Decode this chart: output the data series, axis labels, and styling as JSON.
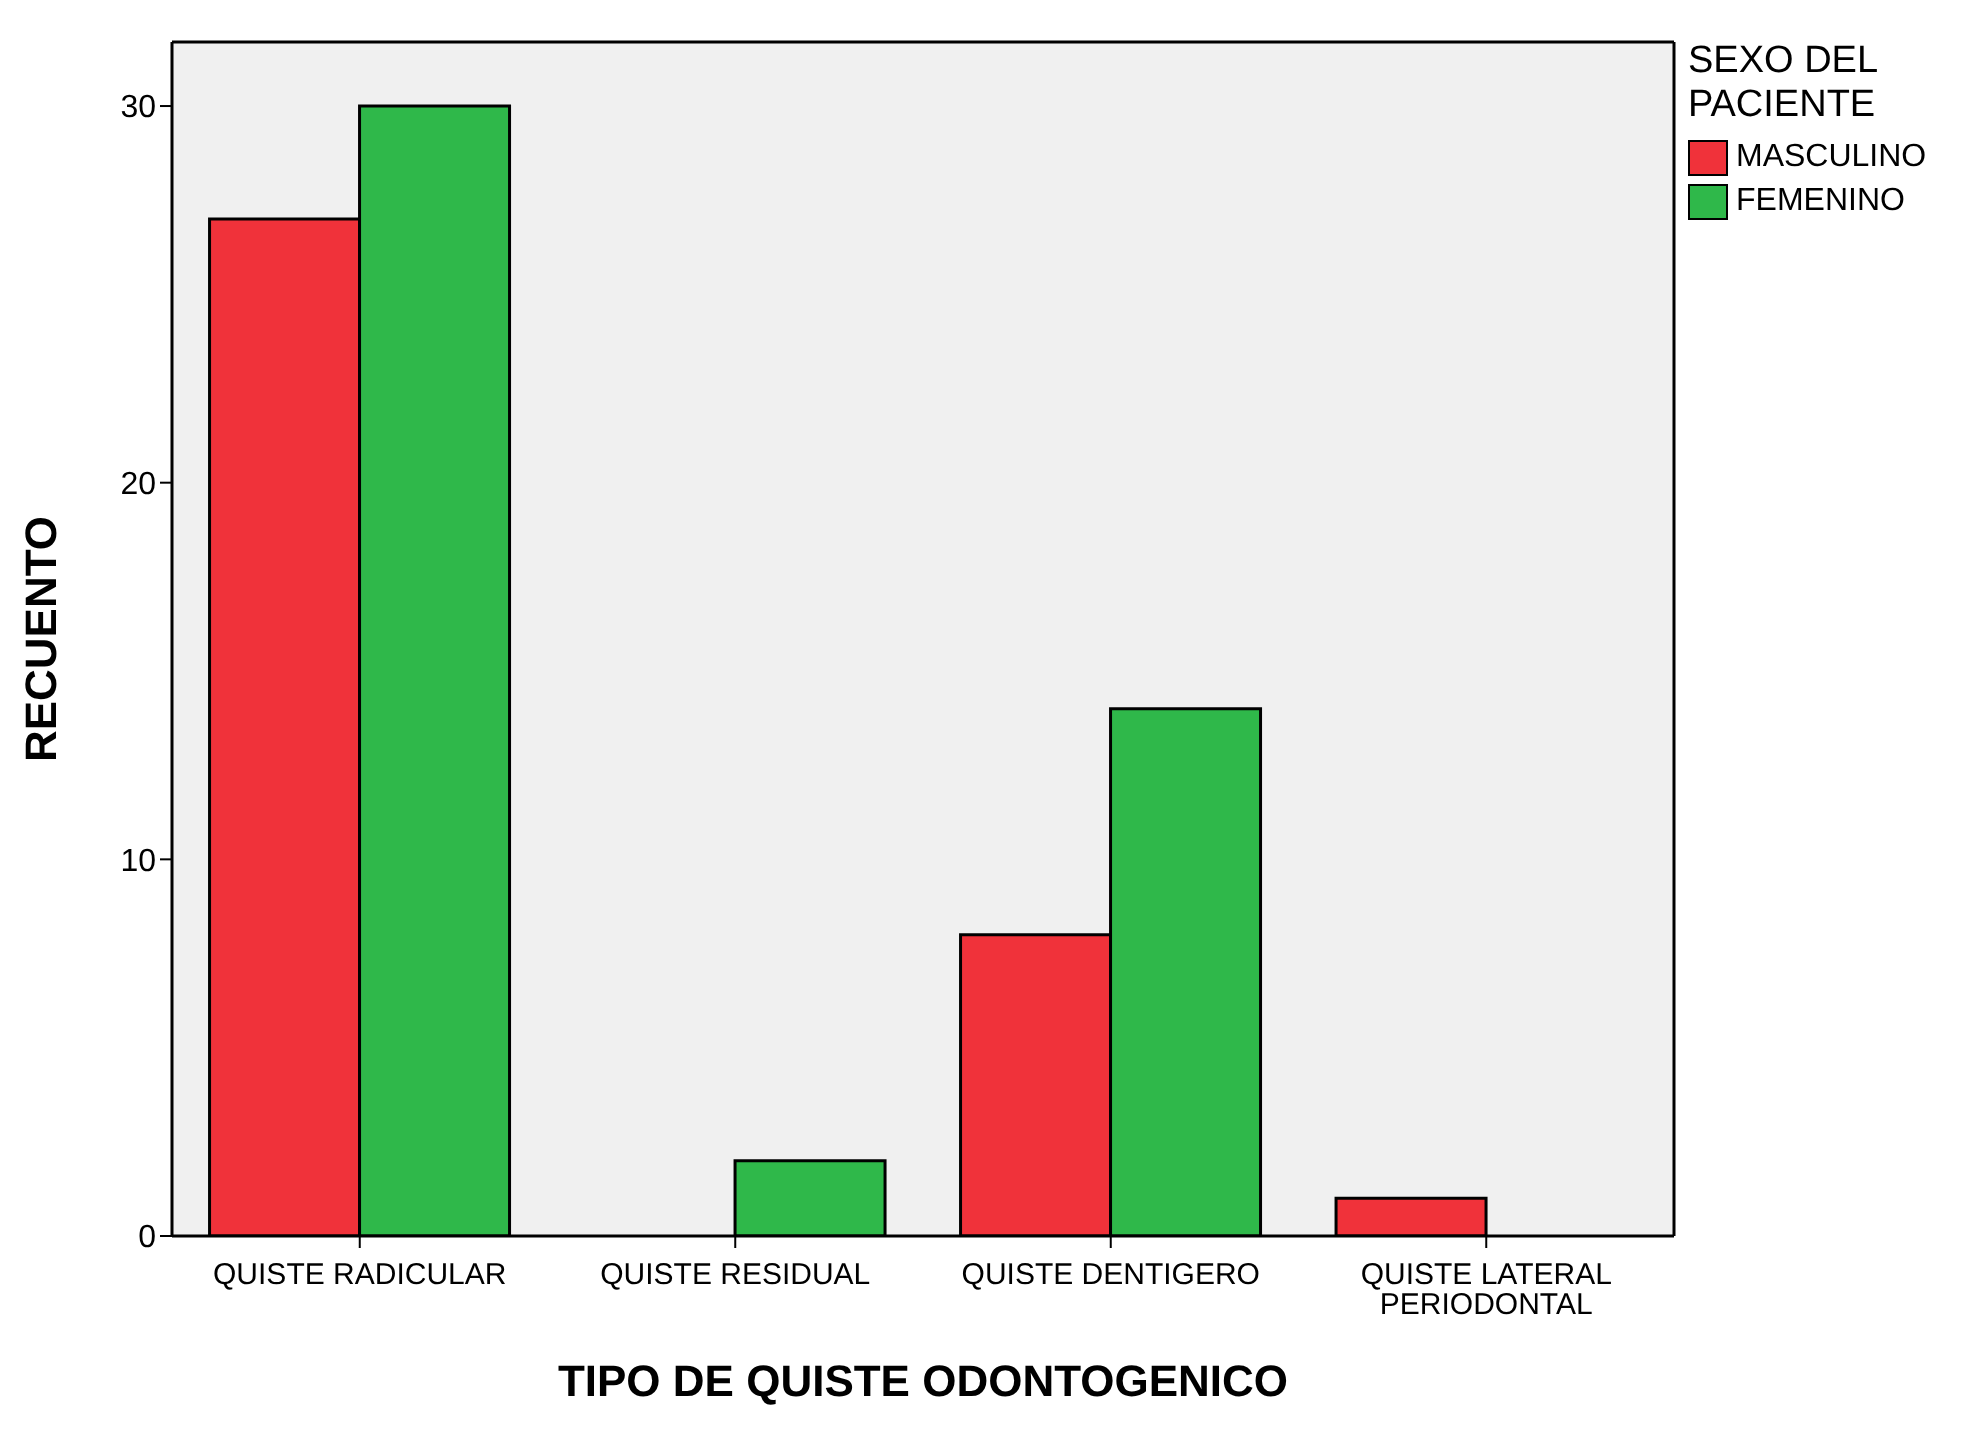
{
  "chart_data": {
    "type": "bar",
    "xlabel": "TIPO DE QUISTE ODONTOGENICO",
    "ylabel": "RECUENTO",
    "legend_title": "SEXO DEL PACIENTE",
    "categories": [
      "QUISTE RADICULAR",
      "QUISTE RESIDUAL",
      "QUISTE DENTIGERO",
      "QUISTE LATERAL PERIODONTAL"
    ],
    "series": [
      {
        "name": "MASCULINO",
        "color": "#f0323a",
        "values": [
          27,
          0,
          8,
          1
        ]
      },
      {
        "name": "FEMENINO",
        "color": "#2fb84a",
        "values": [
          30,
          2,
          14,
          0
        ]
      }
    ],
    "ylim": [
      0,
      31.7
    ],
    "yticks": [
      0,
      10,
      20,
      30
    ],
    "grid": false,
    "legend": "top right"
  }
}
